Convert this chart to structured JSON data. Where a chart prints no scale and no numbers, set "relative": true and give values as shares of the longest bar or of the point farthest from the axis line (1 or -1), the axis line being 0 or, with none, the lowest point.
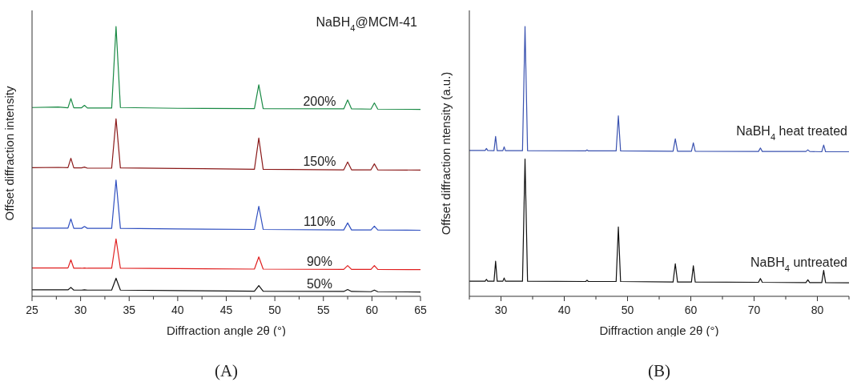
{
  "chart_data": [
    {
      "type": "line",
      "relative": true,
      "xlabel": "Diffraction angle 2θ (°)",
      "ylabel": "Offset diffraction intensity",
      "annotations": [
        "NaBH$_{4}$@MCM-41",
        "(A)"
      ],
      "xlim": [
        25,
        65
      ],
      "xticks": [
        25,
        {
          "value": 27.5,
          "label": null
        },
        30,
        {
          "value": 32.5,
          "label": null
        },
        35,
        {
          "value": 37.5,
          "label": null
        },
        40,
        {
          "value": 42.5,
          "label": null
        },
        45,
        {
          "value": 47.5,
          "label": null
        },
        50,
        {
          "value": 52.5,
          "label": null
        },
        55,
        {
          "value": 57.5,
          "label": null
        },
        60,
        {
          "value": 62.5,
          "label": null
        },
        65
      ],
      "x": [
        25,
        27.7,
        28.7,
        29.0,
        29.3,
        30.1,
        30.4,
        30.7,
        33.2,
        33.65,
        34.1,
        40,
        47.9,
        48.35,
        48.8,
        57.1,
        57.5,
        57.9,
        59.9,
        60.25,
        60.6,
        65
      ],
      "series": [
        {
          "name": "200%",
          "color": "#1a8a45",
          "values": [
            0.7,
            0.702,
            0.699,
            0.733,
            0.699,
            0.699,
            0.708,
            0.698,
            0.698,
            1,
            0.7,
            0.697,
            0.696,
            0.784,
            0.696,
            0.695,
            0.728,
            0.695,
            0.694,
            0.717,
            0.694,
            0.693
          ]
        },
        {
          "name": "150%",
          "color": "#8b1a1a",
          "values": [
            0.477,
            0.478,
            0.477,
            0.512,
            0.476,
            0.476,
            0.479,
            0.475,
            0.475,
            0.658,
            0.476,
            0.474,
            0.471,
            0.587,
            0.471,
            0.469,
            0.498,
            0.469,
            0.469,
            0.491,
            0.469,
            0.468
          ]
        },
        {
          "name": "110%",
          "color": "#3050c0",
          "values": [
            0.253,
            0.253,
            0.253,
            0.287,
            0.252,
            0.252,
            0.259,
            0.252,
            0.252,
            0.431,
            0.252,
            0.25,
            0.248,
            0.334,
            0.248,
            0.246,
            0.272,
            0.246,
            0.246,
            0.26,
            0.246,
            0.245
          ]
        },
        {
          "name": "90%",
          "color": "#e02020",
          "values": [
            0.105,
            0.105,
            0.105,
            0.135,
            0.104,
            0.104,
            0.105,
            0.104,
            0.104,
            0.213,
            0.104,
            0.103,
            0.101,
            0.146,
            0.101,
            0.1,
            0.114,
            0.1,
            0.1,
            0.114,
            0.1,
            0.099
          ]
        },
        {
          "name": "50%",
          "color": "#111111",
          "values": [
            0.024,
            0.024,
            0.024,
            0.033,
            0.023,
            0.023,
            0.024,
            0.023,
            0.023,
            0.067,
            0.023,
            0.021,
            0.019,
            0.04,
            0.019,
            0.018,
            0.025,
            0.018,
            0.017,
            0.023,
            0.017,
            0.016
          ]
        }
      ]
    },
    {
      "type": "line",
      "relative": true,
      "xlabel": "Diffraction angle 2θ (°)",
      "ylabel": "Offset diffraction ntensity (a.u.)",
      "annotations": [
        "(B)"
      ],
      "xlim": [
        25,
        85
      ],
      "xticks": [
        {
          "value": 25,
          "label": null
        },
        30,
        {
          "value": 35,
          "label": null
        },
        40,
        {
          "value": 45,
          "label": null
        },
        50,
        {
          "value": 55,
          "label": null
        },
        60,
        {
          "value": 65,
          "label": null
        },
        70,
        {
          "value": 75,
          "label": null
        },
        80,
        {
          "value": 85,
          "label": null
        }
      ],
      "x": [
        25,
        27.5,
        27.7,
        27.9,
        28.9,
        29.15,
        29.4,
        30.3,
        30.5,
        30.7,
        33.4,
        33.8,
        34.2,
        43.4,
        43.6,
        43.8,
        48.2,
        48.55,
        48.9,
        57.2,
        57.55,
        57.9,
        60.1,
        60.4,
        60.7,
        70.7,
        71.0,
        71.3,
        78.2,
        78.5,
        78.8,
        80.7,
        81.0,
        81.3,
        85
      ],
      "series": [
        {
          "name": "NaBH$_{4}$ heat treated",
          "color": "#3a52b0",
          "values": [
            0.541,
            0.541,
            0.548,
            0.541,
            0.54,
            0.593,
            0.54,
            0.54,
            0.554,
            0.54,
            0.54,
            1,
            0.54,
            0.539,
            0.543,
            0.539,
            0.539,
            0.669,
            0.539,
            0.538,
            0.584,
            0.538,
            0.538,
            0.569,
            0.538,
            0.537,
            0.55,
            0.537,
            0.537,
            0.543,
            0.537,
            0.536,
            0.561,
            0.536,
            0.536
          ]
        },
        {
          "name": "NaBH$_{4}$ untreated",
          "color": "#111111",
          "values": [
            0.056,
            0.056,
            0.063,
            0.056,
            0.056,
            0.13,
            0.056,
            0.056,
            0.068,
            0.056,
            0.056,
            0.509,
            0.056,
            0.055,
            0.06,
            0.055,
            0.055,
            0.257,
            0.055,
            0.053,
            0.121,
            0.053,
            0.053,
            0.113,
            0.053,
            0.052,
            0.066,
            0.052,
            0.051,
            0.061,
            0.051,
            0.051,
            0.096,
            0.051,
            0.05
          ]
        }
      ]
    }
  ]
}
